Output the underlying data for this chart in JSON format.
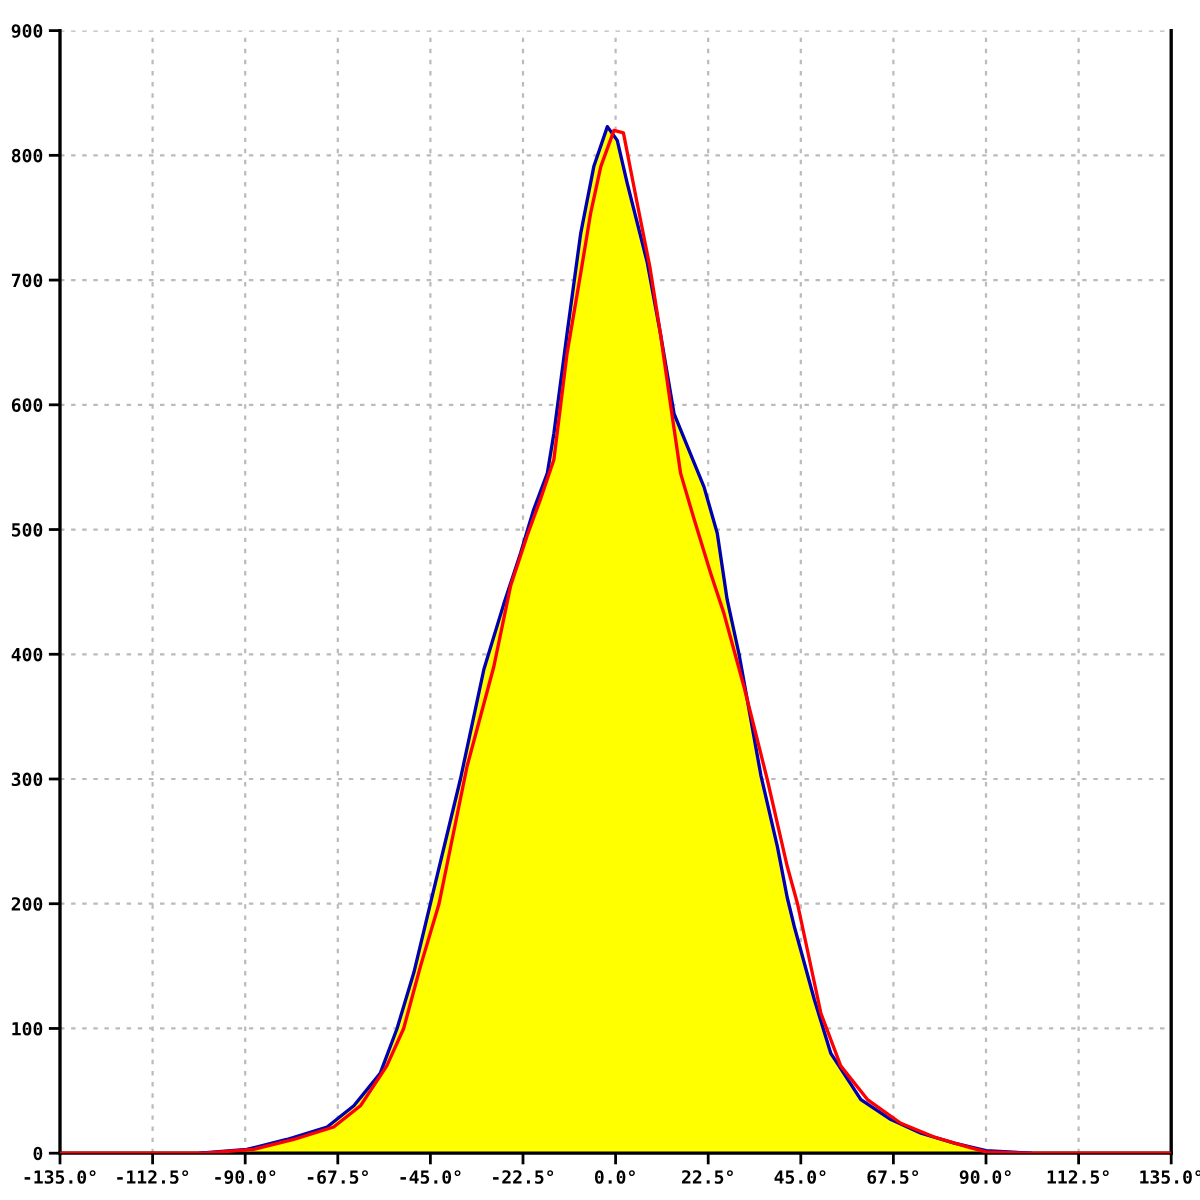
{
  "chart_data": {
    "type": "line",
    "xlim": [
      -135,
      135
    ],
    "xticks": [
      {
        "value": -135,
        "label": "-135.0°"
      },
      {
        "value": -112.5,
        "label": "-112.5°"
      },
      {
        "value": -90,
        "label": "-90.0°"
      },
      {
        "value": -67.5,
        "label": "-67.5°"
      },
      {
        "value": -45,
        "label": "-45.0°"
      },
      {
        "value": -22.5,
        "label": "-22.5°"
      },
      {
        "value": 0,
        "label": "0.0°"
      },
      {
        "value": 22.5,
        "label": "22.5°"
      },
      {
        "value": 45,
        "label": "45.0°"
      },
      {
        "value": 67.5,
        "label": "67.5°"
      },
      {
        "value": 90,
        "label": "90.0°"
      },
      {
        "value": 112.5,
        "label": "112.5°"
      },
      {
        "value": 135,
        "label": "135.0°"
      }
    ],
    "ylim": [
      0,
      900
    ],
    "yticks": [
      0,
      100,
      200,
      300,
      400,
      500,
      600,
      700,
      800,
      900
    ],
    "grid": true,
    "series": [
      {
        "type": "area",
        "color": "#ffff00",
        "x": [
          -101,
          -89.6,
          -79.9,
          -70.1,
          -63.6,
          -57.2,
          -53.1,
          -49,
          -45,
          -37.7,
          -32,
          -27.2,
          -23.1,
          -19.9,
          -16.6,
          -15,
          -11.8,
          -8.5,
          -5.3,
          -2,
          0.4,
          2.8,
          7.7,
          10.9,
          14.2,
          17.4,
          21.5,
          24.7,
          27.1,
          30,
          35.3,
          39.3,
          41.7,
          43.4,
          48.3,
          52.3,
          59.6,
          66.9,
          74.2,
          82.3,
          90,
          101
        ],
        "values": [
          0,
          3,
          11,
          21,
          38,
          64,
          100,
          145,
          200,
          300,
          388,
          440,
          481,
          516,
          545,
          577,
          657,
          737,
          791,
          823,
          812,
          778,
          714,
          657,
          593,
          567,
          534,
          497,
          444,
          400,
          303,
          246,
          205,
          182,
          123,
          80,
          43,
          27,
          16,
          8,
          2,
          0
        ]
      },
      {
        "color": "#ff0000",
        "x": [
          -135,
          -100,
          -88,
          -78.2,
          -68.5,
          -62,
          -55.6,
          -51.5,
          -47.4,
          -42.9,
          -36.1,
          -29.6,
          -25.5,
          -21.5,
          -18.3,
          -15,
          -11.8,
          -8.5,
          -6.1,
          -3.6,
          -0.4,
          1.9,
          5.1,
          8.3,
          10.9,
          13.4,
          15.8,
          19.1,
          23.1,
          26.3,
          31.2,
          36.9,
          41.7,
          44.2,
          49.9,
          54.7,
          61.2,
          69.3,
          77.4,
          85.5,
          90,
          100,
          135
        ],
        "values": [
          0,
          0,
          3,
          11,
          21,
          38,
          70,
          100,
          150,
          200,
          310,
          390,
          455,
          495,
          524,
          556,
          641,
          705,
          753,
          791,
          820,
          818,
          764,
          711,
          657,
          599,
          545,
          508,
          465,
          433,
          374,
          299,
          230,
          200,
          112,
          70,
          43,
          24,
          13,
          5,
          1,
          0,
          0
        ]
      }
    ]
  }
}
